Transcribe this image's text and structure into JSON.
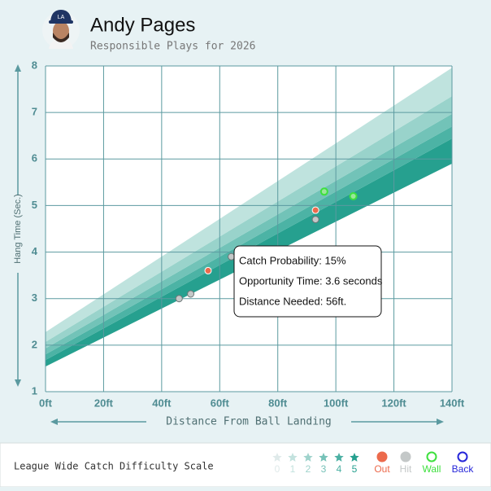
{
  "chart_data": {
    "type": "scatter",
    "title": "Andy Pages",
    "subtitle": "Responsible Plays for 2026",
    "x_label": "Distance From Ball Landing",
    "y_label": "Hang Time (Sec.)",
    "xlim": [
      0,
      140
    ],
    "ylim": [
      1,
      8
    ],
    "xticks": [
      {
        "value": 0,
        "label": "0ft"
      },
      {
        "value": 20,
        "label": "20ft"
      },
      {
        "value": 40,
        "label": "40ft"
      },
      {
        "value": 60,
        "label": "60ft"
      },
      {
        "value": 80,
        "label": "80ft"
      },
      {
        "value": 100,
        "label": "100ft"
      },
      {
        "value": 120,
        "label": "120ft"
      },
      {
        "value": 140,
        "label": "140ft"
      }
    ],
    "yticks": [
      1,
      2,
      3,
      4,
      5,
      6,
      7,
      8
    ],
    "grid": true,
    "band_edges_left": [
      1.54,
      1.68,
      1.8,
      1.93,
      2.07,
      2.28
    ],
    "band_edges_right": [
      5.9,
      6.44,
      6.7,
      6.97,
      7.35,
      7.96
    ],
    "band_colors": [
      "#26a08f",
      "#4cb3a5",
      "#72c3b8",
      "#99d3cb",
      "#bfe3de",
      "#d8eeeb"
    ],
    "series": [
      {
        "name": "Out",
        "color": "#ec6a4c",
        "x": [
          56,
          93
        ],
        "values": [
          3.6,
          4.9
        ]
      },
      {
        "name": "Hit",
        "color": "#c4c8c8",
        "x": [
          46,
          50,
          64,
          93
        ],
        "values": [
          3.0,
          3.1,
          3.9,
          4.7
        ]
      },
      {
        "name": "Wall",
        "color": "#3ee03e",
        "x": [
          96,
          106
        ],
        "values": [
          5.3,
          5.2
        ]
      },
      {
        "name": "Back",
        "color": "#2626d9",
        "x": [],
        "values": []
      }
    ],
    "tooltip": [
      "Catch Probability: 15%",
      "Opportunity Time: 3.6 seconds",
      "Distance Needed: 56ft."
    ],
    "scale_title": "League Wide Catch Difficulty Scale",
    "scale_levels": [
      {
        "label": "0",
        "color": "#dfeaea"
      },
      {
        "label": "1",
        "color": "#c3e2de"
      },
      {
        "label": "2",
        "color": "#9fd3cc"
      },
      {
        "label": "3",
        "color": "#76c2b8"
      },
      {
        "label": "4",
        "color": "#4cb0a3"
      },
      {
        "label": "5",
        "color": "#26a08f"
      }
    ]
  }
}
